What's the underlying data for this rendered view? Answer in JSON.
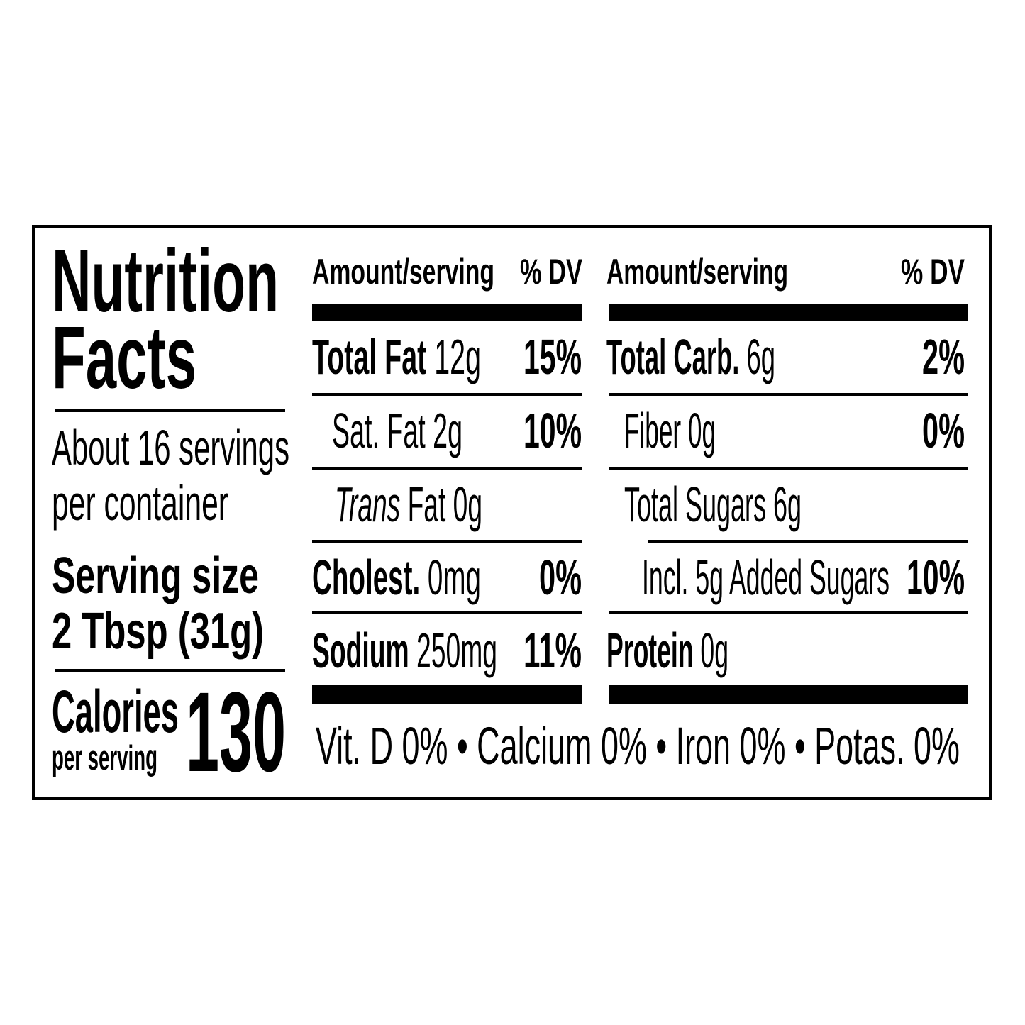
{
  "title_line1": "Nutrition",
  "title_line2": "Facts",
  "servings_line1": "About 16 servings",
  "servings_line2": "per container",
  "serving_size_label": "Serving size",
  "serving_size_value": "2 Tbsp (31g)",
  "calories_label": "Calories",
  "calories_sub": "per serving",
  "calories_value": "130",
  "header": {
    "amount": "Amount/serving",
    "dv": "% DV"
  },
  "left_rows": [
    {
      "name": "Total Fat",
      "amount": " 12g",
      "dv": "15%"
    },
    {
      "name": "Sat. Fat 2g",
      "dv": "10%"
    },
    {
      "name_italic": "Trans",
      "name": " Fat 0g"
    },
    {
      "name": "Cholest.",
      "amount": " 0mg",
      "dv": "0%"
    },
    {
      "name": "Sodium",
      "amount": " 250mg",
      "dv": "11%"
    }
  ],
  "right_rows": [
    {
      "name": "Total Carb.",
      "amount": " 6g",
      "dv": "2%"
    },
    {
      "name": "Fiber 0g",
      "dv": "0%"
    },
    {
      "name": "Total Sugars 6g"
    },
    {
      "name": "Incl. 5g Added Sugars",
      "dv": "10%"
    },
    {
      "name": "Protein",
      "amount": " 0g"
    }
  ],
  "footer": "Vit. D 0% • Calcium 0% • Iron 0% • Potas. 0%"
}
